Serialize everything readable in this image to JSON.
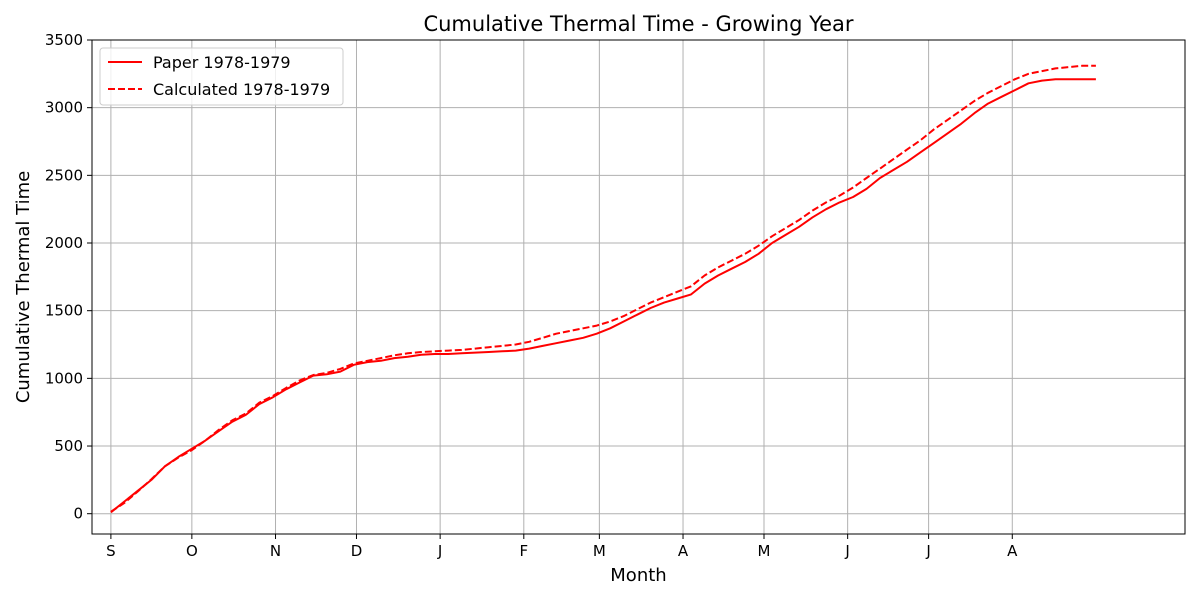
{
  "chart_data": {
    "type": "line",
    "title": "Cumulative Thermal Time - Growing Year",
    "xlabel": "Month",
    "ylabel": "Cumulative Thermal Time",
    "ylim": [
      -150,
      3500
    ],
    "xlim": [
      -7,
      398
    ],
    "yticks": [
      0,
      500,
      1000,
      1500,
      2000,
      2500,
      3000,
      3500
    ],
    "xticks": [
      {
        "label": "S",
        "value": 0
      },
      {
        "label": "O",
        "value": 30
      },
      {
        "label": "N",
        "value": 61
      },
      {
        "label": "D",
        "value": 91
      },
      {
        "label": "J",
        "value": 122
      },
      {
        "label": "F",
        "value": 153
      },
      {
        "label": "M",
        "value": 181
      },
      {
        "label": "A",
        "value": 212
      },
      {
        "label": "M",
        "value": 242
      },
      {
        "label": "J",
        "value": 273
      },
      {
        "label": "J",
        "value": 303
      },
      {
        "label": "A",
        "value": 334
      }
    ],
    "grid": true,
    "legend_position": "top-left",
    "colors": {
      "series": "#ff0000",
      "grid": "#b0b0b0"
    },
    "series": [
      {
        "name": "Paper 1978-1979",
        "style": "solid",
        "x": [
          0,
          5,
          10,
          15,
          20,
          25,
          30,
          35,
          40,
          45,
          50,
          55,
          60,
          65,
          70,
          75,
          80,
          85,
          90,
          95,
          100,
          105,
          110,
          115,
          120,
          125,
          130,
          135,
          140,
          145,
          150,
          155,
          160,
          165,
          170,
          175,
          180,
          185,
          190,
          195,
          200,
          205,
          210,
          215,
          220,
          225,
          230,
          235,
          240,
          245,
          250,
          255,
          260,
          265,
          270,
          275,
          280,
          285,
          290,
          295,
          300,
          305,
          310,
          315,
          320,
          325,
          330,
          335,
          340,
          345,
          350,
          355,
          360,
          365
        ],
        "y": [
          10,
          90,
          170,
          250,
          350,
          420,
          480,
          540,
          610,
          680,
          730,
          810,
          860,
          920,
          970,
          1020,
          1030,
          1050,
          1100,
          1120,
          1130,
          1150,
          1160,
          1175,
          1180,
          1180,
          1185,
          1190,
          1195,
          1200,
          1205,
          1220,
          1240,
          1260,
          1280,
          1300,
          1330,
          1370,
          1420,
          1470,
          1520,
          1560,
          1590,
          1620,
          1700,
          1760,
          1810,
          1860,
          1920,
          2000,
          2060,
          2120,
          2190,
          2250,
          2300,
          2340,
          2400,
          2480,
          2540,
          2600,
          2670,
          2740,
          2810,
          2880,
          2960,
          3030,
          3080,
          3130,
          3180,
          3200,
          3210,
          3210,
          3210,
          3210
        ]
      },
      {
        "name": "Calculated 1978-1979",
        "style": "dashed",
        "x": [
          0,
          5,
          10,
          15,
          20,
          25,
          30,
          35,
          40,
          45,
          50,
          55,
          60,
          65,
          70,
          75,
          80,
          85,
          90,
          95,
          100,
          105,
          110,
          115,
          120,
          125,
          130,
          135,
          140,
          145,
          150,
          155,
          160,
          165,
          170,
          175,
          180,
          185,
          190,
          195,
          200,
          205,
          210,
          215,
          220,
          225,
          230,
          235,
          240,
          245,
          250,
          255,
          260,
          265,
          270,
          275,
          280,
          285,
          290,
          295,
          300,
          305,
          310,
          315,
          320,
          325,
          330,
          335,
          340,
          345,
          350,
          355,
          360,
          365
        ],
        "y": [
          15,
          80,
          165,
          255,
          350,
          415,
          470,
          540,
          620,
          690,
          740,
          820,
          870,
          930,
          985,
          1025,
          1040,
          1070,
          1110,
          1130,
          1150,
          1170,
          1185,
          1195,
          1200,
          1205,
          1210,
          1220,
          1230,
          1240,
          1250,
          1270,
          1300,
          1330,
          1350,
          1370,
          1390,
          1420,
          1460,
          1510,
          1560,
          1600,
          1640,
          1680,
          1760,
          1820,
          1870,
          1920,
          1980,
          2050,
          2110,
          2170,
          2240,
          2300,
          2350,
          2410,
          2480,
          2550,
          2620,
          2690,
          2760,
          2840,
          2910,
          2980,
          3050,
          3110,
          3160,
          3210,
          3250,
          3270,
          3290,
          3300,
          3310,
          3310
        ]
      }
    ]
  }
}
